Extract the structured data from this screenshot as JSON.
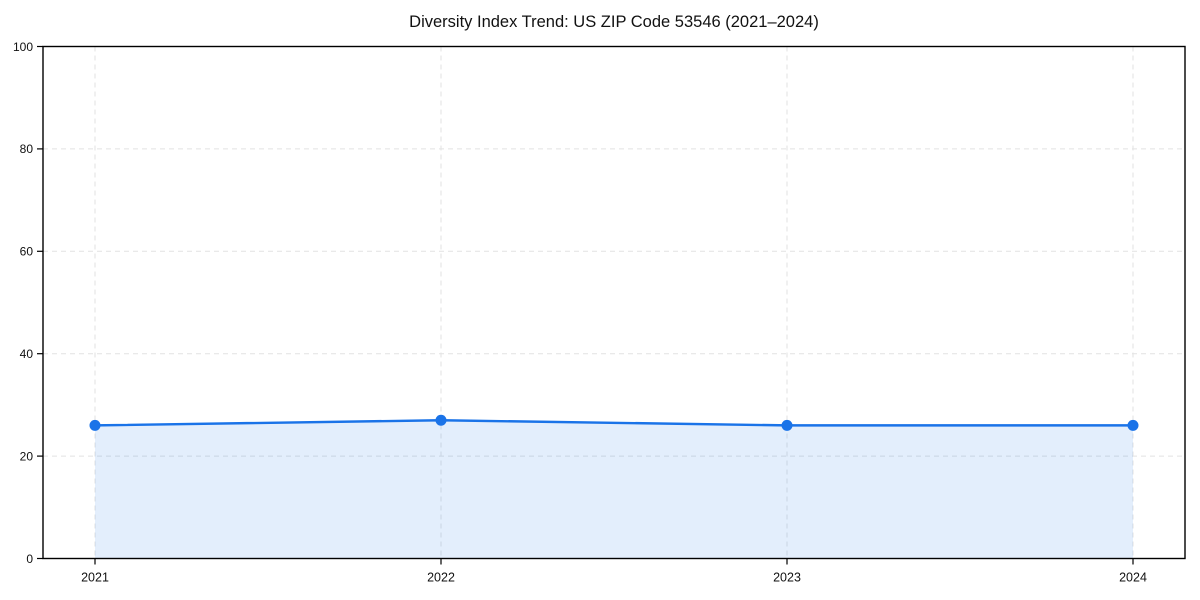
{
  "chart_data": {
    "type": "area",
    "title": "Diversity Index Trend: US ZIP Code 53546 (2021–2024)",
    "x": [
      "2021",
      "2022",
      "2023",
      "2024"
    ],
    "series": [
      {
        "name": "Diversity Index",
        "values": [
          26,
          27,
          26,
          26
        ]
      }
    ],
    "xlabel": "",
    "ylabel": "",
    "ylim": [
      0,
      100
    ],
    "yticks": [
      0,
      20,
      40,
      60,
      80,
      100
    ],
    "grid": "dashed",
    "legend": "none",
    "colors": {
      "line": "#1a73e8",
      "marker": "#1a73e8",
      "fill": "rgba(26,115,232,0.12)",
      "gridline": "#e2e2e2",
      "axis": "#000000",
      "text": "#111111",
      "background": "#ffffff"
    }
  }
}
